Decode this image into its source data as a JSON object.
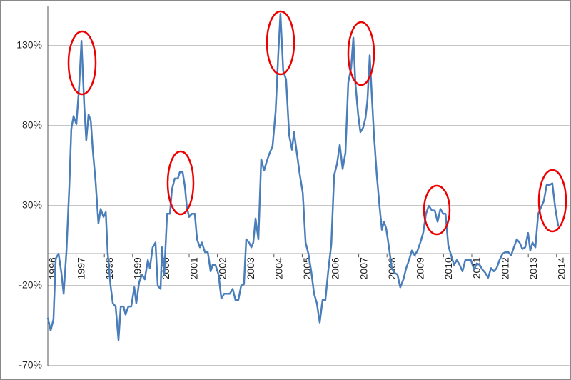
{
  "chart_data": {
    "type": "line",
    "x": [
      1996.0,
      1996.1,
      1996.2,
      1996.28,
      1996.38,
      1996.48,
      1996.56,
      1996.66,
      1996.76,
      1996.83,
      1996.91,
      1997.01,
      1997.11,
      1997.19,
      1997.29,
      1997.36,
      1997.44,
      1997.52,
      1997.59,
      1997.69,
      1997.79,
      1997.87,
      1997.97,
      1998.05,
      1998.12,
      1998.22,
      1998.3,
      1998.4,
      1998.5,
      1998.58,
      1998.68,
      1998.75,
      1998.85,
      1998.95,
      1999.06,
      1999.13,
      1999.23,
      1999.33,
      1999.43,
      1999.54,
      1999.61,
      1999.71,
      1999.81,
      1999.89,
      1999.99,
      2000.04,
      2000.12,
      2000.22,
      2000.32,
      2000.39,
      2000.49,
      2000.6,
      2000.67,
      2000.77,
      2000.85,
      2000.92,
      2001.0,
      2001.1,
      2001.2,
      2001.28,
      2001.38,
      2001.45,
      2001.56,
      2001.66,
      2001.76,
      2001.83,
      2001.93,
      2002.04,
      2002.14,
      2002.24,
      2002.34,
      2002.44,
      2002.54,
      2002.64,
      2002.74,
      2002.84,
      2002.94,
      2003.02,
      2003.12,
      2003.2,
      2003.27,
      2003.35,
      2003.45,
      2003.55,
      2003.65,
      2003.75,
      2003.85,
      2003.95,
      2004.06,
      2004.16,
      2004.23,
      2004.33,
      2004.43,
      2004.54,
      2004.64,
      2004.71,
      2004.81,
      2004.91,
      2005.02,
      2005.12,
      2005.22,
      2005.32,
      2005.42,
      2005.52,
      2005.62,
      2005.72,
      2005.82,
      2005.92,
      2006.03,
      2006.13,
      2006.23,
      2006.33,
      2006.43,
      2006.53,
      2006.63,
      2006.73,
      2006.81,
      2006.88,
      2006.98,
      2007.06,
      2007.16,
      2007.24,
      2007.31,
      2007.39,
      2007.46,
      2007.54,
      2007.64,
      2007.74,
      2007.82,
      2007.89,
      2007.97,
      2008.07,
      2008.17,
      2008.27,
      2008.37,
      2008.47,
      2008.58,
      2008.68,
      2008.78,
      2008.88,
      2008.98,
      2009.08,
      2009.18,
      2009.28,
      2009.38,
      2009.48,
      2009.59,
      2009.69,
      2009.79,
      2009.89,
      2009.99,
      2010.07,
      2010.17,
      2010.27,
      2010.37,
      2010.47,
      2010.57,
      2010.67,
      2010.77,
      2010.87,
      2010.97,
      2011.08,
      2011.18,
      2011.28,
      2011.38,
      2011.48,
      2011.58,
      2011.68,
      2011.78,
      2011.88,
      2011.98,
      2012.09,
      2012.19,
      2012.29,
      2012.39,
      2012.49,
      2012.59,
      2012.69,
      2012.79,
      2012.89,
      2012.99,
      2013.07,
      2013.15,
      2013.25,
      2013.35,
      2013.45,
      2013.55,
      2013.65,
      2013.75,
      2013.85,
      2013.95,
      2014.06
    ],
    "values": [
      -40,
      -48,
      -41,
      -3,
      0,
      -12,
      -25,
      2,
      42,
      78,
      86,
      81,
      105,
      133,
      92,
      71,
      87,
      83,
      65,
      45,
      19,
      28,
      23,
      26,
      0,
      -20,
      -31,
      -33,
      -54,
      -33,
      -33,
      -38,
      -33,
      -33,
      -21,
      -31,
      -18,
      -13,
      -16,
      -4,
      -9,
      4,
      7,
      -20,
      -22,
      4,
      -13,
      25,
      25,
      40,
      47,
      47,
      51,
      51,
      42,
      29,
      23,
      25,
      25,
      9,
      4,
      7,
      1,
      1,
      -11,
      -7,
      -7,
      -13,
      -28,
      -25,
      -25,
      -25,
      -22,
      -29,
      -29,
      -20,
      -19,
      9,
      7,
      4,
      7,
      22,
      9,
      59,
      52,
      58,
      63,
      67,
      89,
      127,
      150,
      114,
      109,
      74,
      65,
      76,
      63,
      50,
      38,
      7,
      0,
      -11,
      -25,
      -31,
      -43,
      -29,
      -29,
      -11,
      6,
      49,
      56,
      68,
      53,
      63,
      107,
      116,
      135,
      107,
      87,
      76,
      79,
      85,
      96,
      124,
      100,
      74,
      49,
      29,
      15,
      20,
      16,
      4,
      -9,
      -12,
      -13,
      -21,
      -16,
      -9,
      -4,
      2,
      -1,
      2,
      7,
      13,
      25,
      30,
      27,
      27,
      20,
      28,
      25,
      25,
      5,
      -1,
      -7,
      -4,
      -7,
      -11,
      -4,
      -4,
      -4,
      -10,
      -6,
      -7,
      -10,
      -12,
      -15,
      -9,
      -11,
      -9,
      -4,
      0,
      1,
      1,
      -1,
      4,
      9,
      7,
      3,
      4,
      13,
      2,
      7,
      4,
      25,
      29,
      33,
      43,
      43,
      44,
      29,
      17
    ],
    "color": "#4a7ebb",
    "xlim": [
      1996,
      2014.45
    ],
    "xticks": [
      1996,
      1997,
      1998,
      1999,
      2000,
      2001,
      2002,
      2003,
      2004,
      2005,
      2006,
      2007,
      2008,
      2009,
      2010,
      2011,
      2012,
      2013,
      2014
    ],
    "ylim": [
      -70,
      155
    ],
    "yticks": [
      {
        "value": -70,
        "label": "-70%"
      },
      {
        "value": -20,
        "label": "-20%"
      },
      {
        "value": 30,
        "label": "30%"
      },
      {
        "value": 80,
        "label": "80%"
      },
      {
        "value": 130,
        "label": "130%"
      }
    ],
    "grid": true
  }
}
